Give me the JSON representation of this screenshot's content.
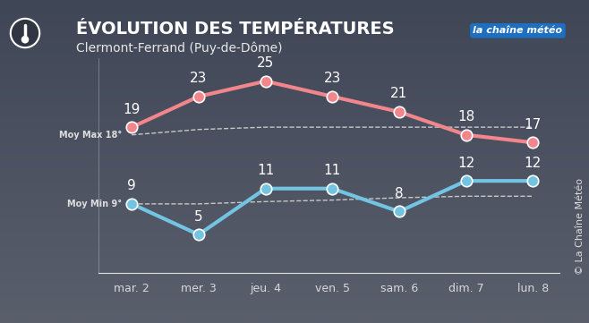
{
  "chart_data": {
    "type": "line",
    "title": "ÉVOLUTION DES TEMPÉRATURES",
    "subtitle": "Clermont-Ferrand (Puy-de-Dôme)",
    "logo": "la chaîne météo",
    "credit": "© La Chaîne Météo",
    "categories": [
      "mar. 2",
      "mer. 3",
      "jeu. 4",
      "ven. 5",
      "sam. 6",
      "dim. 7",
      "lun. 8"
    ],
    "series": [
      {
        "color": "#f2868c",
        "marker": "o",
        "line_style": "solid",
        "data_labels": true,
        "values": [
          19,
          23,
          25,
          23,
          21,
          18,
          17
        ]
      },
      {
        "color": "#73c4e3",
        "marker": "o",
        "line_style": "solid",
        "data_labels": true,
        "values": [
          9,
          5,
          11,
          11,
          8,
          12,
          12
        ]
      },
      {
        "name": "Moy Max 18°",
        "color": "#c8c8c8",
        "line_style": "dashed",
        "values": [
          18,
          18.7,
          19,
          19,
          19,
          19,
          19
        ]
      },
      {
        "name": "Moy Min 9°",
        "color": "#c8c8c8",
        "line_style": "dashed",
        "values": [
          9,
          9,
          9.3,
          9.5,
          9.8,
          10,
          10
        ]
      }
    ],
    "ylim": [
      0,
      28
    ],
    "tick_labels": "x",
    "grid": false
  }
}
